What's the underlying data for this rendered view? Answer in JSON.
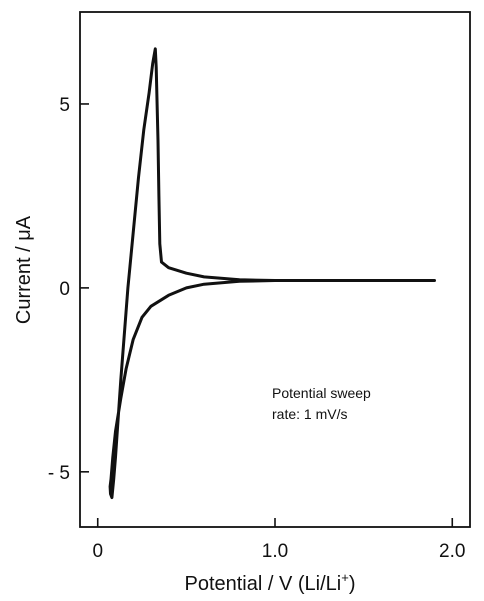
{
  "chart_data": {
    "type": "line",
    "title": "",
    "xlabel": "Potential / V (Li/Li",
    "xlabel_sup": "+",
    "xlabel_end": ")",
    "ylabel": "Current / μA",
    "xlim": [
      -0.1,
      2.1
    ],
    "ylim": [
      -6.5,
      7.5
    ],
    "x_ticks": [
      {
        "value": 0.0,
        "label": "0"
      },
      {
        "value": 1.0,
        "label": "1.0"
      },
      {
        "value": 2.0,
        "label": "2.0"
      }
    ],
    "y_ticks": [
      {
        "value": 5,
        "label": "5"
      },
      {
        "value": 0,
        "label": "0"
      },
      {
        "value": -5,
        "label": "- 5"
      }
    ],
    "grid": false,
    "annotation": [
      "Potential sweep",
      "rate: 1 mV/s"
    ],
    "series": [
      {
        "x": [
          1.9,
          1.5,
          1.0,
          0.8,
          0.6,
          0.5,
          0.4,
          0.3,
          0.25,
          0.2,
          0.16,
          0.13,
          0.1,
          0.085,
          0.075,
          0.07,
          0.072,
          0.08,
          0.09,
          0.1,
          0.13,
          0.17,
          0.2,
          0.23,
          0.26,
          0.29,
          0.31,
          0.325,
          0.33,
          0.34,
          0.345,
          0.35,
          0.36,
          0.4,
          0.5,
          0.6,
          0.8,
          1.0,
          1.3,
          1.6,
          1.9
        ],
        "y": [
          0.2,
          0.2,
          0.2,
          0.18,
          0.1,
          0.0,
          -0.2,
          -0.5,
          -0.8,
          -1.4,
          -2.2,
          -3.0,
          -3.9,
          -4.6,
          -5.2,
          -5.4,
          -5.6,
          -5.7,
          -5.2,
          -4.6,
          -2.5,
          0.0,
          1.5,
          3.0,
          4.3,
          5.3,
          6.1,
          6.5,
          6.0,
          4.0,
          2.5,
          1.2,
          0.7,
          0.55,
          0.4,
          0.3,
          0.22,
          0.2,
          0.2,
          0.2,
          0.2
        ]
      }
    ]
  }
}
